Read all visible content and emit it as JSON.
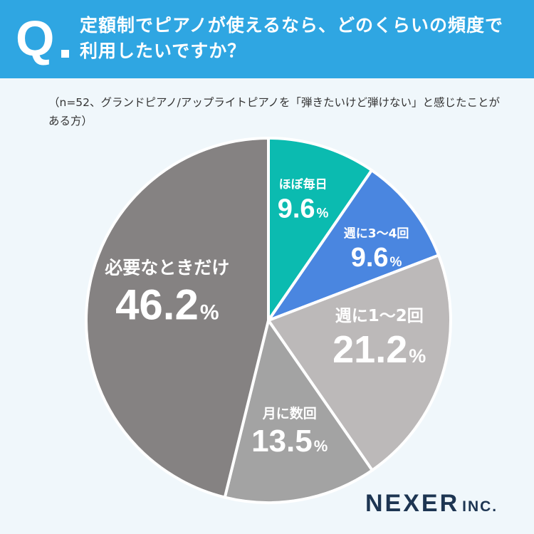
{
  "header": {
    "q_mark": "Q",
    "question": "定額制でピアノが使えるなら、どのくらいの頻度で利用したいですか？"
  },
  "note": "（n=52、グランドピアノ/アップライトピアノを「弾きたいけど弾けない」と感じたことがある方）",
  "brand": {
    "name": "NEXER",
    "suffix": "INC."
  },
  "chart_data": {
    "type": "pie",
    "title": "定額制でピアノが使えるなら、どのくらいの頻度で利用したいですか？",
    "n": 52,
    "unit": "%",
    "slices": [
      {
        "label": "ほぼ毎日",
        "value": 9.6,
        "value_text": "9.6",
        "color": "#0bbbb0",
        "text_color": "#ffffff"
      },
      {
        "label": "週に3〜4回",
        "value": 9.6,
        "value_text": "9.6",
        "color": "#4a86e0",
        "text_color": "#ffffff"
      },
      {
        "label": "週に1〜2回",
        "value": 21.2,
        "value_text": "21.2",
        "color": "#bcb9b9",
        "text_color": "#ffffff"
      },
      {
        "label": "月に数回",
        "value": 13.5,
        "value_text": "13.5",
        "color": "#a3a3a3",
        "text_color": "#ffffff"
      },
      {
        "label": "必要なときだけ",
        "value": 46.2,
        "value_text": "46.2",
        "color": "#858282",
        "text_color": "#ffffff"
      }
    ]
  }
}
